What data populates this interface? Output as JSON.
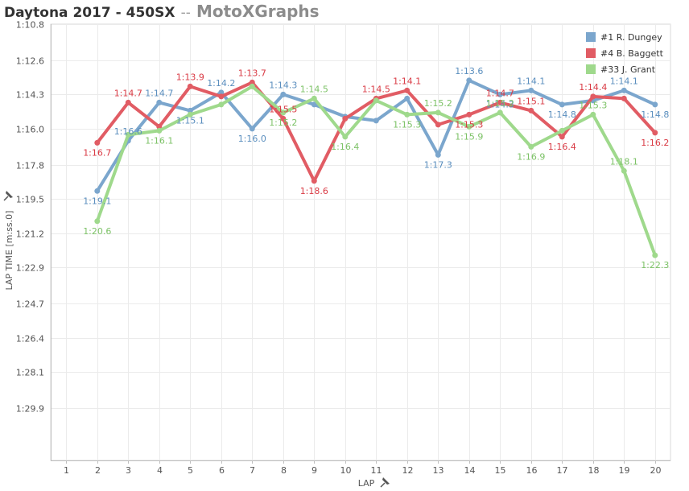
{
  "header": {
    "title": "Daytona 2017 - 450SX",
    "separator": "--",
    "brand": "MotoXGraphs"
  },
  "chart_data": {
    "type": "line",
    "xlabel": "LAP",
    "ylabel": "LAP TIME [m:ss.0]",
    "x_ticks": [
      1,
      2,
      3,
      4,
      5,
      6,
      7,
      8,
      9,
      10,
      11,
      12,
      13,
      14,
      15,
      16,
      17,
      18,
      19,
      20
    ],
    "xlim": [
      0.5,
      20.5
    ],
    "y_ticks": [
      "1:10.8",
      "1:12.6",
      "1:14.3",
      "1:16.0",
      "1:17.8",
      "1:19.5",
      "1:21.2",
      "1:22.9",
      "1:24.7",
      "1:26.4",
      "1:28.1",
      "1:29.9"
    ],
    "y_tick_seconds": [
      70.8,
      72.6,
      74.3,
      76.0,
      77.8,
      79.5,
      81.2,
      82.9,
      84.7,
      86.4,
      88.1,
      89.9
    ],
    "ylim_seconds": [
      70.8,
      92.5
    ],
    "y_inverted": true,
    "grid": true,
    "legend_position": "top-right",
    "series": [
      {
        "name": "#1 R. Dungey",
        "color": "#7ba6cd",
        "x": [
          2,
          3,
          4,
          5,
          6,
          7,
          8,
          9,
          10,
          11,
          12,
          13,
          14,
          15,
          16,
          17,
          18,
          19,
          20
        ],
        "y_seconds": [
          79.1,
          76.6,
          74.7,
          75.1,
          74.2,
          76.0,
          74.3,
          74.8,
          75.4,
          75.6,
          74.5,
          77.3,
          73.6,
          74.3,
          74.1,
          74.8,
          74.6,
          74.1,
          74.8
        ],
        "labels": [
          "1:19.1",
          "1:16.6",
          "1:14.7",
          "1:15.1",
          "1:14.2",
          "1:16.0",
          "1:14.3",
          "",
          "",
          "",
          "",
          "1:17.3",
          "1:13.6",
          "1:14.3",
          "1:14.1",
          "1:14.8",
          "",
          "1:14.1",
          "1:14.8"
        ]
      },
      {
        "name": "#4 B. Baggett",
        "color": "#e15c64",
        "x": [
          2,
          3,
          4,
          5,
          6,
          7,
          8,
          9,
          10,
          11,
          12,
          13,
          14,
          15,
          16,
          17,
          18,
          19,
          20
        ],
        "y_seconds": [
          76.7,
          74.7,
          75.9,
          73.9,
          74.4,
          73.7,
          75.5,
          78.6,
          75.5,
          74.5,
          74.1,
          75.8,
          75.3,
          74.7,
          75.1,
          76.4,
          74.4,
          74.5,
          76.2
        ],
        "labels": [
          "1:16.7",
          "1:14.7",
          "",
          "1:13.9",
          "",
          "1:13.7",
          "1:15.5",
          "1:18.6",
          "",
          "1:14.5",
          "1:14.1",
          "",
          "1:15.3",
          "1:14.7",
          "1:15.1",
          "1:16.4",
          "1:14.4",
          "",
          "1:16.2"
        ]
      },
      {
        "name": "#33 J. Grant",
        "color": "#9fd98c",
        "x": [
          2,
          3,
          4,
          5,
          6,
          7,
          8,
          9,
          10,
          11,
          12,
          13,
          14,
          15,
          16,
          17,
          18,
          19,
          20
        ],
        "y_seconds": [
          80.6,
          76.3,
          76.1,
          75.3,
          74.8,
          73.9,
          75.2,
          74.5,
          76.4,
          74.6,
          75.3,
          75.2,
          75.9,
          75.2,
          76.9,
          76.1,
          75.3,
          78.1,
          82.3
        ],
        "labels": [
          "1:20.6",
          "",
          "1:16.1",
          "",
          "",
          "",
          "1:15.2",
          "1:14.5",
          "1:16.4",
          "",
          "1:15.3",
          "1:15.2",
          "1:15.9",
          "1:15.2",
          "1:16.9",
          "",
          "1:15.3",
          "1:18.1",
          "1:22.3"
        ]
      }
    ]
  }
}
